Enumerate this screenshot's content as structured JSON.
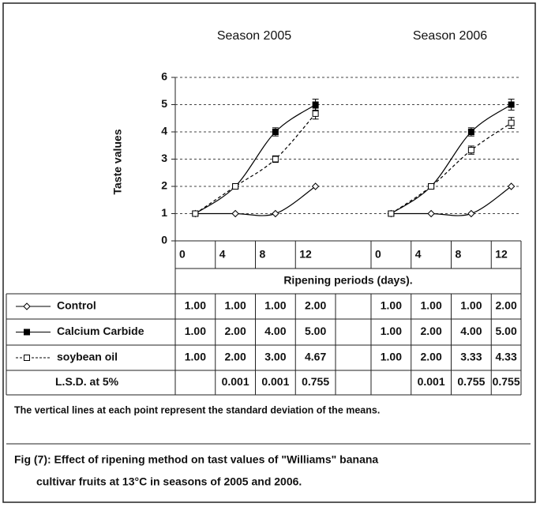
{
  "figure": {
    "y_label": "Taste values",
    "x_label": "Ripening periods (days).",
    "note": "The vertical lines at each point represent the standard deviation of the means.",
    "caption_lines": [
      "Fig (7): Effect of ripening method on tast values of  \"Williams\" banana",
      "cultivar fruits at 13°C in seasons of 2005 and 2006."
    ]
  },
  "chart_data": [
    {
      "type": "line",
      "title": "Season 2005",
      "x": [
        2,
        6,
        10,
        14
      ],
      "xlim": [
        0,
        16
      ],
      "xticks": [
        0,
        4,
        8,
        12
      ],
      "ylim": [
        0,
        6
      ],
      "yticks": [
        0,
        1,
        2,
        3,
        4,
        5,
        6
      ],
      "grid": true,
      "series": [
        {
          "name": "Control",
          "color": "#000000",
          "marker": "diamond",
          "filled": false,
          "dashed": false,
          "values": [
            1,
            1,
            1,
            2
          ],
          "value_labels": [
            "1.00",
            "1.00",
            "1.00",
            "2.00"
          ],
          "errors": [
            null,
            null,
            null,
            null
          ]
        },
        {
          "name": "Calcium Carbide",
          "color": "#000000",
          "marker": "square",
          "filled": true,
          "dashed": false,
          "values": [
            1,
            2,
            4,
            5
          ],
          "value_labels": [
            "1.00",
            "2.00",
            "4.00",
            "5.00"
          ],
          "errors": [
            null,
            null,
            0.15,
            0.2
          ]
        },
        {
          "name": "soybean oil",
          "color": "#000000",
          "marker": "square",
          "filled": false,
          "dashed": true,
          "values": [
            1,
            2,
            3,
            4.67
          ],
          "value_labels": [
            "1.00",
            "2.00",
            "3.00",
            "4.67"
          ],
          "errors": [
            null,
            null,
            0.12,
            0.2
          ]
        }
      ],
      "lsd_label": "L.S.D. at 5%",
      "lsd": [
        null,
        0.001,
        0.001,
        0.755
      ]
    },
    {
      "type": "line",
      "title": "Season 2006",
      "x": [
        2,
        6,
        10,
        14
      ],
      "xlim": [
        0,
        16
      ],
      "xticks": [
        0,
        4,
        8,
        12
      ],
      "ylim": [
        0,
        6
      ],
      "yticks": [
        0,
        1,
        2,
        3,
        4,
        5,
        6
      ],
      "grid": true,
      "series": [
        {
          "color": "#000000",
          "marker": "diamond",
          "filled": false,
          "dashed": false,
          "values": [
            1,
            1,
            1,
            2
          ],
          "value_labels": [
            "1.00",
            "1.00",
            "1.00",
            "2.00"
          ],
          "errors": [
            null,
            null,
            null,
            null
          ]
        },
        {
          "color": "#000000",
          "marker": "square",
          "filled": true,
          "dashed": false,
          "values": [
            1,
            2,
            4,
            5
          ],
          "value_labels": [
            "1.00",
            "2.00",
            "4.00",
            "5.00"
          ],
          "errors": [
            null,
            null,
            0.15,
            0.2
          ]
        },
        {
          "color": "#000000",
          "marker": "square",
          "filled": false,
          "dashed": true,
          "values": [
            1,
            2,
            3.33,
            4.33
          ],
          "value_labels": [
            "1.00",
            "2.00",
            "3.33",
            "4.33"
          ],
          "errors": [
            null,
            null,
            0.15,
            0.2
          ]
        }
      ],
      "lsd": [
        null,
        0.001,
        0.755,
        0.755
      ]
    }
  ]
}
